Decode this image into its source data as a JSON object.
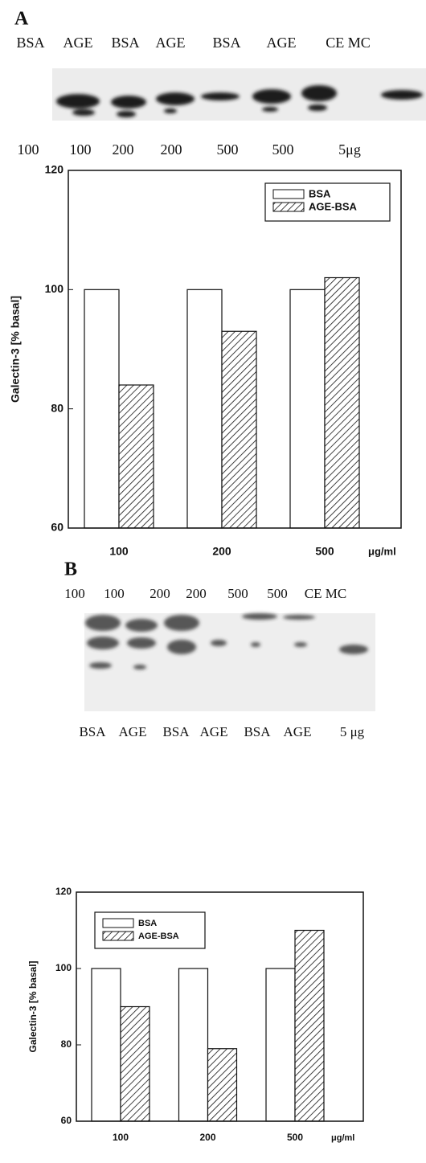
{
  "panels": [
    {
      "label": "A",
      "blot_top_labels": [
        "BSA",
        "AGE",
        "BSA",
        "AGE",
        "BSA",
        "AGE",
        "CE MC"
      ],
      "blot_bottom_labels": [
        "100",
        "100",
        "200",
        "200",
        "500",
        "500",
        "5μg"
      ]
    },
    {
      "label": "B",
      "blot_top_labels": [
        "100",
        "100",
        "200",
        "200",
        "500",
        "500",
        "CE MC"
      ],
      "blot_bottom_labels": [
        "BSA",
        "AGE",
        "BSA",
        "AGE",
        "BSA",
        "AGE",
        "5 μg"
      ]
    }
  ],
  "chart_data": [
    {
      "type": "bar",
      "y_label": "Galectin-3 [% basal]",
      "x_label": "μg/ml",
      "categories": [
        "100",
        "200",
        "500"
      ],
      "series": [
        {
          "name": "BSA",
          "color": "#ffffff",
          "values": [
            100,
            100,
            100
          ]
        },
        {
          "name": "AGE-BSA",
          "color": "#ffffff",
          "hatch": true,
          "values": [
            84,
            93,
            102
          ]
        }
      ],
      "ylim": [
        60,
        120
      ],
      "yticks": [
        60,
        80,
        100,
        120
      ],
      "grid": false,
      "legend": "upper right"
    },
    {
      "type": "bar",
      "y_label": "Galectin-3 [% basal]",
      "x_label": "μg/ml",
      "categories": [
        "100",
        "200",
        "500"
      ],
      "series": [
        {
          "name": "BSA",
          "color": "#ffffff",
          "values": [
            100,
            100,
            100
          ]
        },
        {
          "name": "AGE-BSA",
          "color": "#ffffff",
          "hatch": true,
          "values": [
            90,
            79,
            110
          ]
        }
      ],
      "ylim": [
        60,
        120
      ],
      "yticks": [
        60,
        80,
        100,
        120
      ],
      "grid": false,
      "legend": "upper left"
    }
  ]
}
